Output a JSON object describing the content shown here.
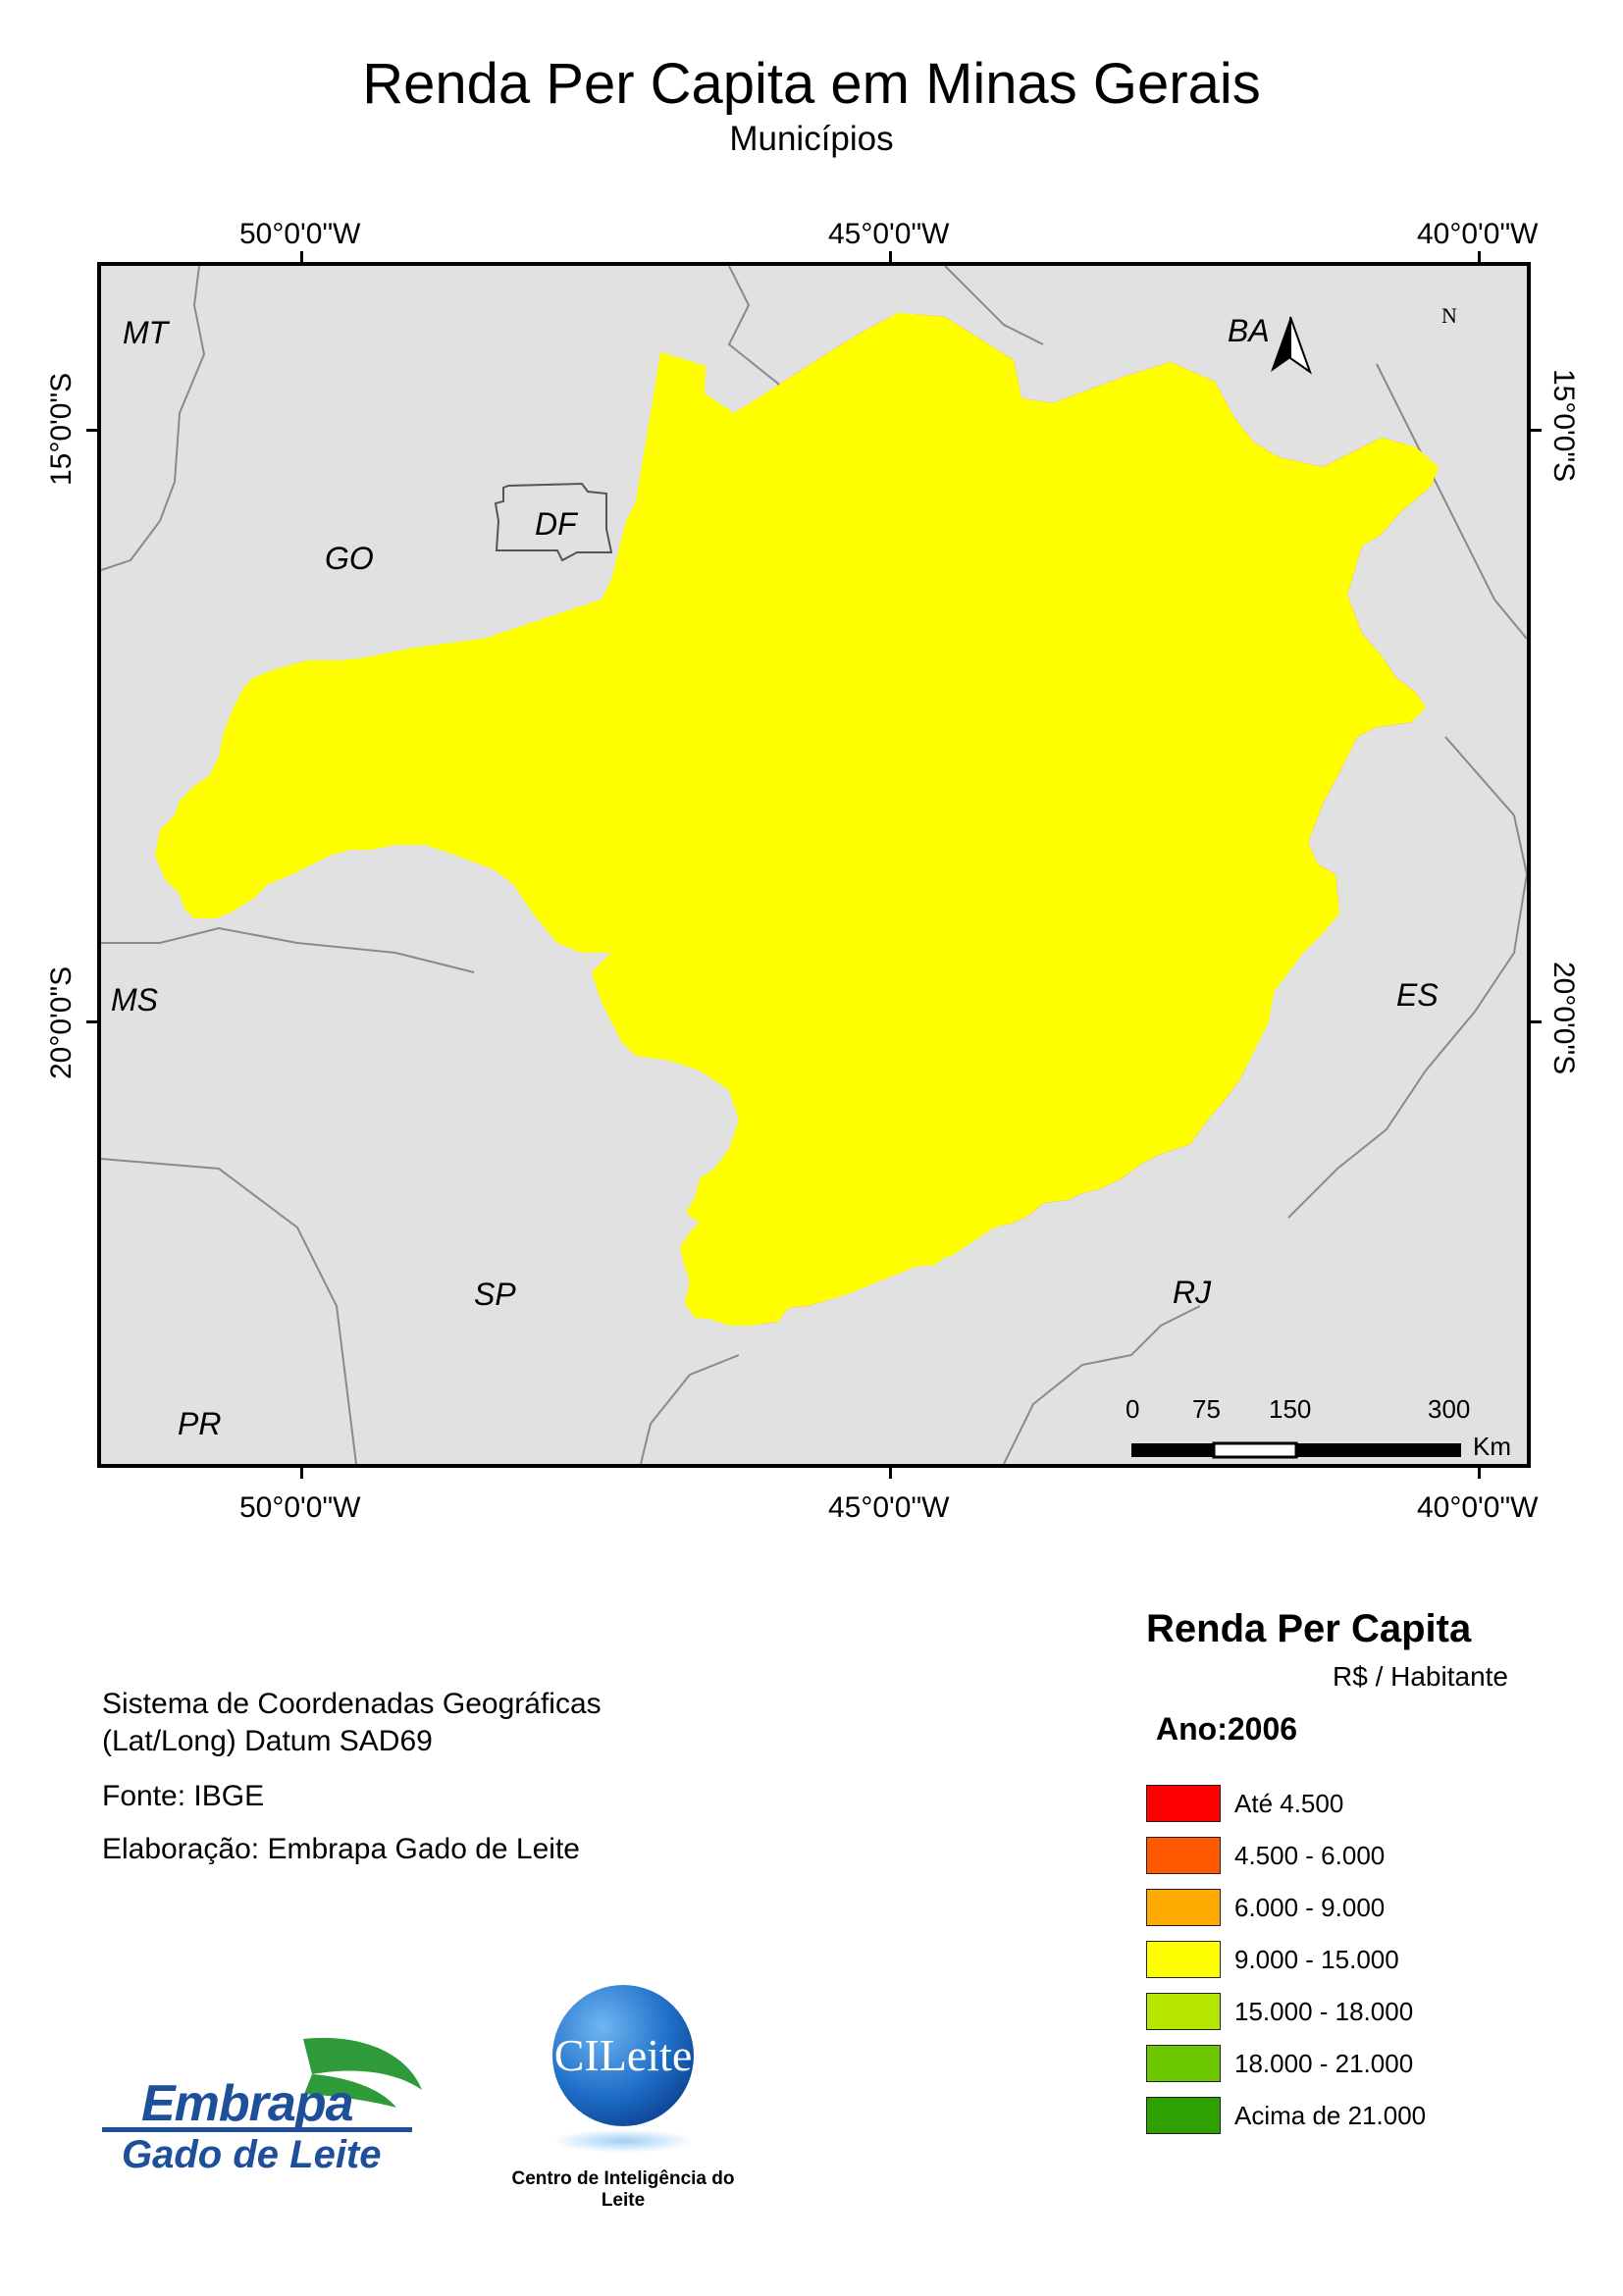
{
  "title": "Renda Per Capita em Minas Gerais",
  "subtitle": "Municípios",
  "grid_labels": {
    "lon_w50": "50°0'0\"W",
    "lon_w45": "45°0'0\"W",
    "lon_w40": "40°0'0\"W",
    "lat_s15": "15°0'0\"S",
    "lat_s20": "20°0'0\"S"
  },
  "state_labels": {
    "mt": "MT",
    "go": "GO",
    "df": "DF",
    "ba": "BA",
    "ms": "MS",
    "es": "ES",
    "sp": "SP",
    "rj": "RJ",
    "pr": "PR"
  },
  "north_arrow": {
    "label": "N",
    "icon": "north-arrow-icon"
  },
  "scale_bar": {
    "ticks": [
      "0",
      "75",
      "150",
      "300"
    ],
    "unit": "Km"
  },
  "notes": {
    "crs_line1": "Sistema de Coordenadas Geográficas",
    "crs_line2": "(Lat/Long) Datum SAD69",
    "source": "Fonte: IBGE",
    "author": "Elaboração: Embrapa Gado de Leite"
  },
  "legend": {
    "title": "Renda Per Capita",
    "units": "R$ / Habitante",
    "year": "Ano:2006",
    "classes": [
      {
        "label": "Até 4.500",
        "color": "#ff0000"
      },
      {
        "label": "4.500 - 6.000",
        "color": "#ff5a00"
      },
      {
        "label": "6.000 - 9.000",
        "color": "#ffaa00"
      },
      {
        "label": "9.000 - 15.000",
        "color": "#ffff00"
      },
      {
        "label": "15.000 - 18.000",
        "color": "#b4e600"
      },
      {
        "label": "18.000 - 21.000",
        "color": "#6ec800"
      },
      {
        "label": "Acima de 21.000",
        "color": "#2ea000"
      }
    ]
  },
  "logos": {
    "embrapa_name": "Embrapa",
    "embrapa_unit": "Gado de Leite",
    "cileite_name": "CILeite",
    "cileite_caption": "Centro de Inteligência do Leite"
  },
  "colors": {
    "map_background": "#e1e1e1",
    "embrapa_blue": "#1e4f9a",
    "embrapa_green": "#2e9a3a"
  }
}
